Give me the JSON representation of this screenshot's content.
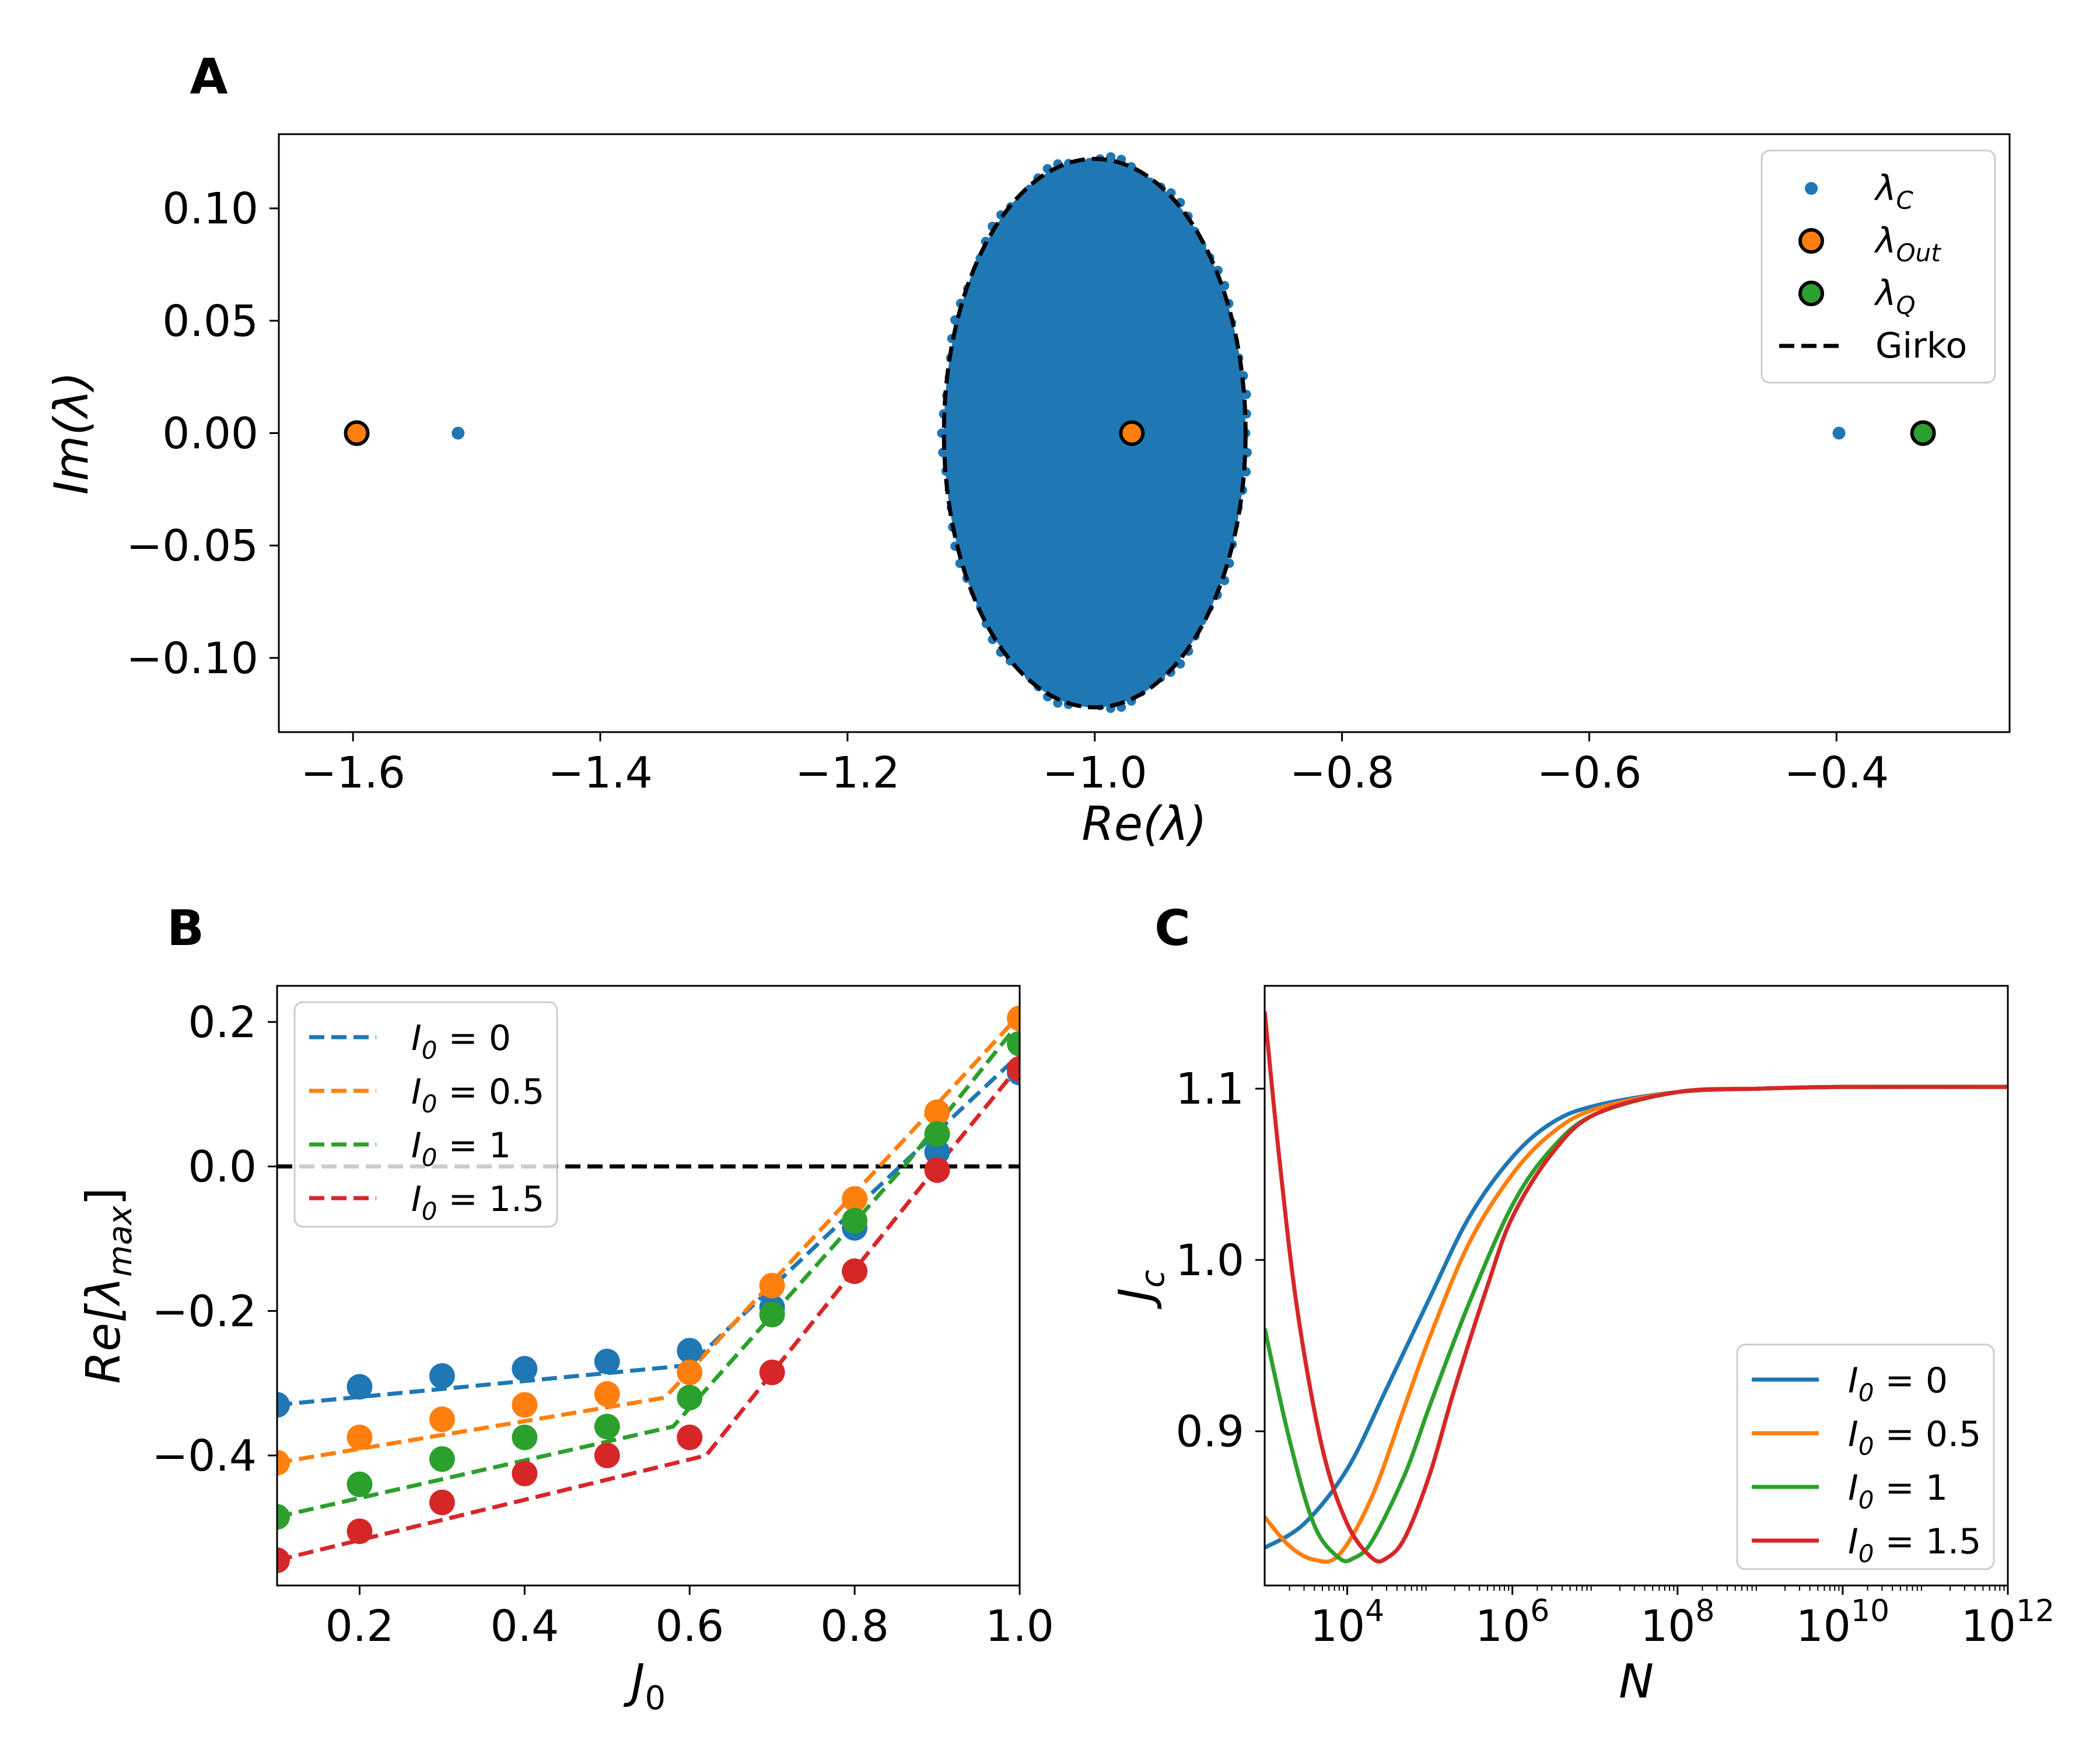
{
  "colors": {
    "C0": "#1f77b4",
    "C1": "#ff7f0e",
    "C2": "#2ca02c",
    "C3": "#d62728",
    "girko": "#000000"
  },
  "chart_data": [
    {
      "panel": "A",
      "type": "scatter",
      "xlabel": "Re(λ)",
      "ylabel": "Im(λ)",
      "xlim": [
        -1.66,
        -0.26
      ],
      "ylim": [
        -0.133,
        0.133
      ],
      "xticks": [
        -1.6,
        -1.4,
        -1.2,
        -1.0,
        -0.8,
        -0.6,
        -0.4
      ],
      "xtick_labels": [
        "−1.6",
        "−1.4",
        "−1.2",
        "−1.0",
        "−0.8",
        "−0.6",
        "−0.4"
      ],
      "yticks": [
        0.1,
        0.05,
        0.0,
        -0.05,
        -0.1
      ],
      "ytick_labels": [
        "0.10",
        "0.05",
        "0.00",
        "−0.05",
        "−0.10"
      ],
      "legend_position": "top-right",
      "series": [
        {
          "name": "λ_C",
          "label_base": "λ",
          "label_sub": "C",
          "marker": "small-dot",
          "color": "C0",
          "cloud": {
            "shape": "filled ellipse",
            "center": [
              -1.0,
              0.0
            ],
            "semi_axis_re": 0.122,
            "semi_axis_im": 0.122
          },
          "points": [
            [
              -1.515,
              0.0
            ],
            [
              -0.398,
              0.0
            ]
          ]
        },
        {
          "name": "λ_Out",
          "label_base": "λ",
          "label_sub": "Out",
          "marker": "large-circle",
          "color": "C1",
          "points": [
            [
              -1.597,
              0.0
            ],
            [
              -0.97,
              0.0
            ]
          ]
        },
        {
          "name": "λ_Q",
          "label_base": "λ",
          "label_sub": "Q",
          "marker": "large-circle",
          "color": "C2",
          "points": [
            [
              -0.33,
              0.0
            ]
          ]
        },
        {
          "name": "Girko",
          "label_base": "Girko",
          "label_sub": "",
          "marker": "dashed-line",
          "color": "girko",
          "ellipse": {
            "center": [
              -1.0,
              0.0
            ],
            "semi_axis_re": 0.122,
            "semi_axis_im": 0.122
          }
        }
      ]
    },
    {
      "panel": "B",
      "type": "line",
      "xlabel": "J",
      "xlabel_sub": "0",
      "ylabel": "Re[λ",
      "ylabel_sub": "max",
      "ylabel_close": "]",
      "xlim": [
        0.1,
        1.0
      ],
      "ylim": [
        -0.58,
        0.25
      ],
      "xticks": [
        0.2,
        0.4,
        0.6,
        0.8,
        1.0
      ],
      "xtick_labels": [
        "0.2",
        "0.4",
        "0.6",
        "0.8",
        "1.0"
      ],
      "yticks": [
        0.2,
        0.0,
        -0.2,
        -0.4
      ],
      "ytick_labels": [
        "0.2",
        "0.0",
        "−0.2",
        "−0.4"
      ],
      "reference_line_y": 0.0,
      "legend_position": "top-left",
      "x": [
        0.1,
        0.2,
        0.3,
        0.4,
        0.5,
        0.6,
        0.7,
        0.8,
        0.9,
        1.0
      ],
      "series": [
        {
          "name": "I_0 = 0",
          "label_base": "I",
          "label_sub": "0",
          "label_rest": " = 0",
          "color": "C0",
          "points": [
            -0.33,
            -0.305,
            -0.29,
            -0.28,
            -0.27,
            -0.255,
            -0.195,
            -0.085,
            0.02,
            0.13
          ],
          "theory": [
            [
              0.1,
              -0.33
            ],
            [
              0.6,
              -0.275
            ],
            [
              0.855,
              0.0
            ],
            [
              1.0,
              0.155
            ]
          ]
        },
        {
          "name": "I_0 = 0.5",
          "label_base": "I",
          "label_sub": "0",
          "label_rest": " = 0.5",
          "color": "C1",
          "points": [
            -0.41,
            -0.375,
            -0.35,
            -0.33,
            -0.315,
            -0.285,
            -0.165,
            -0.045,
            0.075,
            0.205
          ],
          "theory": [
            [
              0.1,
              -0.41
            ],
            [
              0.57,
              -0.32
            ],
            [
              0.83,
              0.0
            ],
            [
              1.0,
              0.21
            ]
          ]
        },
        {
          "name": "I_0 = 1",
          "label_base": "I",
          "label_sub": "0",
          "label_rest": " = 1",
          "color": "C2",
          "points": [
            -0.485,
            -0.44,
            -0.405,
            -0.375,
            -0.36,
            -0.32,
            -0.205,
            -0.075,
            0.045,
            0.17
          ],
          "theory": [
            [
              0.1,
              -0.485
            ],
            [
              0.58,
              -0.36
            ],
            [
              0.86,
              0.0
            ],
            [
              1.0,
              0.2
            ]
          ]
        },
        {
          "name": "I_0 = 1.5",
          "label_base": "I",
          "label_sub": "0",
          "label_rest": " = 1.5",
          "color": "C3",
          "points": [
            -0.545,
            -0.505,
            -0.465,
            -0.425,
            -0.4,
            -0.375,
            -0.285,
            -0.145,
            -0.005,
            0.135
          ],
          "theory": [
            [
              0.1,
              -0.545
            ],
            [
              0.62,
              -0.4
            ],
            [
              0.9,
              0.0
            ],
            [
              1.0,
              0.14
            ]
          ]
        }
      ]
    },
    {
      "panel": "C",
      "type": "line",
      "xscale": "log",
      "xlabel": "N",
      "ylabel": "J",
      "ylabel_sub": "c",
      "xlim": [
        1000,
        1000000000000
      ],
      "ylim": [
        0.81,
        1.16
      ],
      "xticks": [
        10000,
        1000000,
        100000000,
        10000000000,
        1000000000000
      ],
      "xtick_base": "10",
      "xtick_exponents": [
        "4",
        "6",
        "8",
        "10",
        "12"
      ],
      "yticks": [
        1.1,
        1.0,
        0.9
      ],
      "ytick_labels": [
        "1.1",
        "1.0",
        "0.9"
      ],
      "legend_position": "bottom-right",
      "series": [
        {
          "name": "I_0 = 0",
          "label_base": "I",
          "label_sub": "0",
          "label_rest": " = 0",
          "color": "C0",
          "x": [
            1000,
            3000,
            10000,
            30000,
            100000,
            300000,
            1000000,
            3000000,
            10000000,
            100000000,
            1000000000,
            10000000000,
            1000000000000
          ],
          "values": [
            0.832,
            0.846,
            0.878,
            0.925,
            0.978,
            1.025,
            1.06,
            1.08,
            1.09,
            1.098,
            1.1,
            1.101,
            1.101
          ]
        },
        {
          "name": "I_0 = 0.5",
          "label_base": "I",
          "label_sub": "0",
          "label_rest": " = 0.5",
          "color": "C1",
          "x": [
            1000,
            2000,
            4000,
            8000,
            20000,
            50000,
            100000,
            300000,
            1000000,
            3000000,
            10000000,
            100000000,
            1000000000,
            10000000000,
            1000000000000
          ],
          "values": [
            0.85,
            0.833,
            0.825,
            0.828,
            0.862,
            0.915,
            0.955,
            1.01,
            1.05,
            1.074,
            1.088,
            1.098,
            1.1,
            1.101,
            1.101
          ]
        },
        {
          "name": "I_0 = 1",
          "label_base": "I",
          "label_sub": "0",
          "label_rest": " = 1",
          "color": "C2",
          "x": [
            1000,
            2000,
            4000,
            8000,
            12000,
            20000,
            50000,
            100000,
            300000,
            1000000,
            3000000,
            10000000,
            100000000,
            1000000000,
            10000000000,
            1000000000000
          ],
          "values": [
            0.96,
            0.895,
            0.845,
            0.826,
            0.826,
            0.836,
            0.875,
            0.915,
            0.975,
            1.032,
            1.065,
            1.085,
            1.098,
            1.1,
            1.101,
            1.101
          ]
        },
        {
          "name": "I_0 = 1.5",
          "label_base": "I",
          "label_sub": "0",
          "label_rest": " = 1.5",
          "color": "C3",
          "x": [
            1000,
            1500,
            2500,
            5000,
            10000,
            20000,
            30000,
            50000,
            100000,
            200000,
            500000,
            1000000,
            3000000,
            10000000,
            100000000,
            1000000000,
            10000000000,
            1000000000000
          ],
          "values": [
            1.145,
            1.06,
            0.97,
            0.89,
            0.846,
            0.826,
            0.826,
            0.838,
            0.875,
            0.925,
            0.985,
            1.025,
            1.062,
            1.085,
            1.098,
            1.1,
            1.101,
            1.101
          ]
        }
      ]
    }
  ]
}
